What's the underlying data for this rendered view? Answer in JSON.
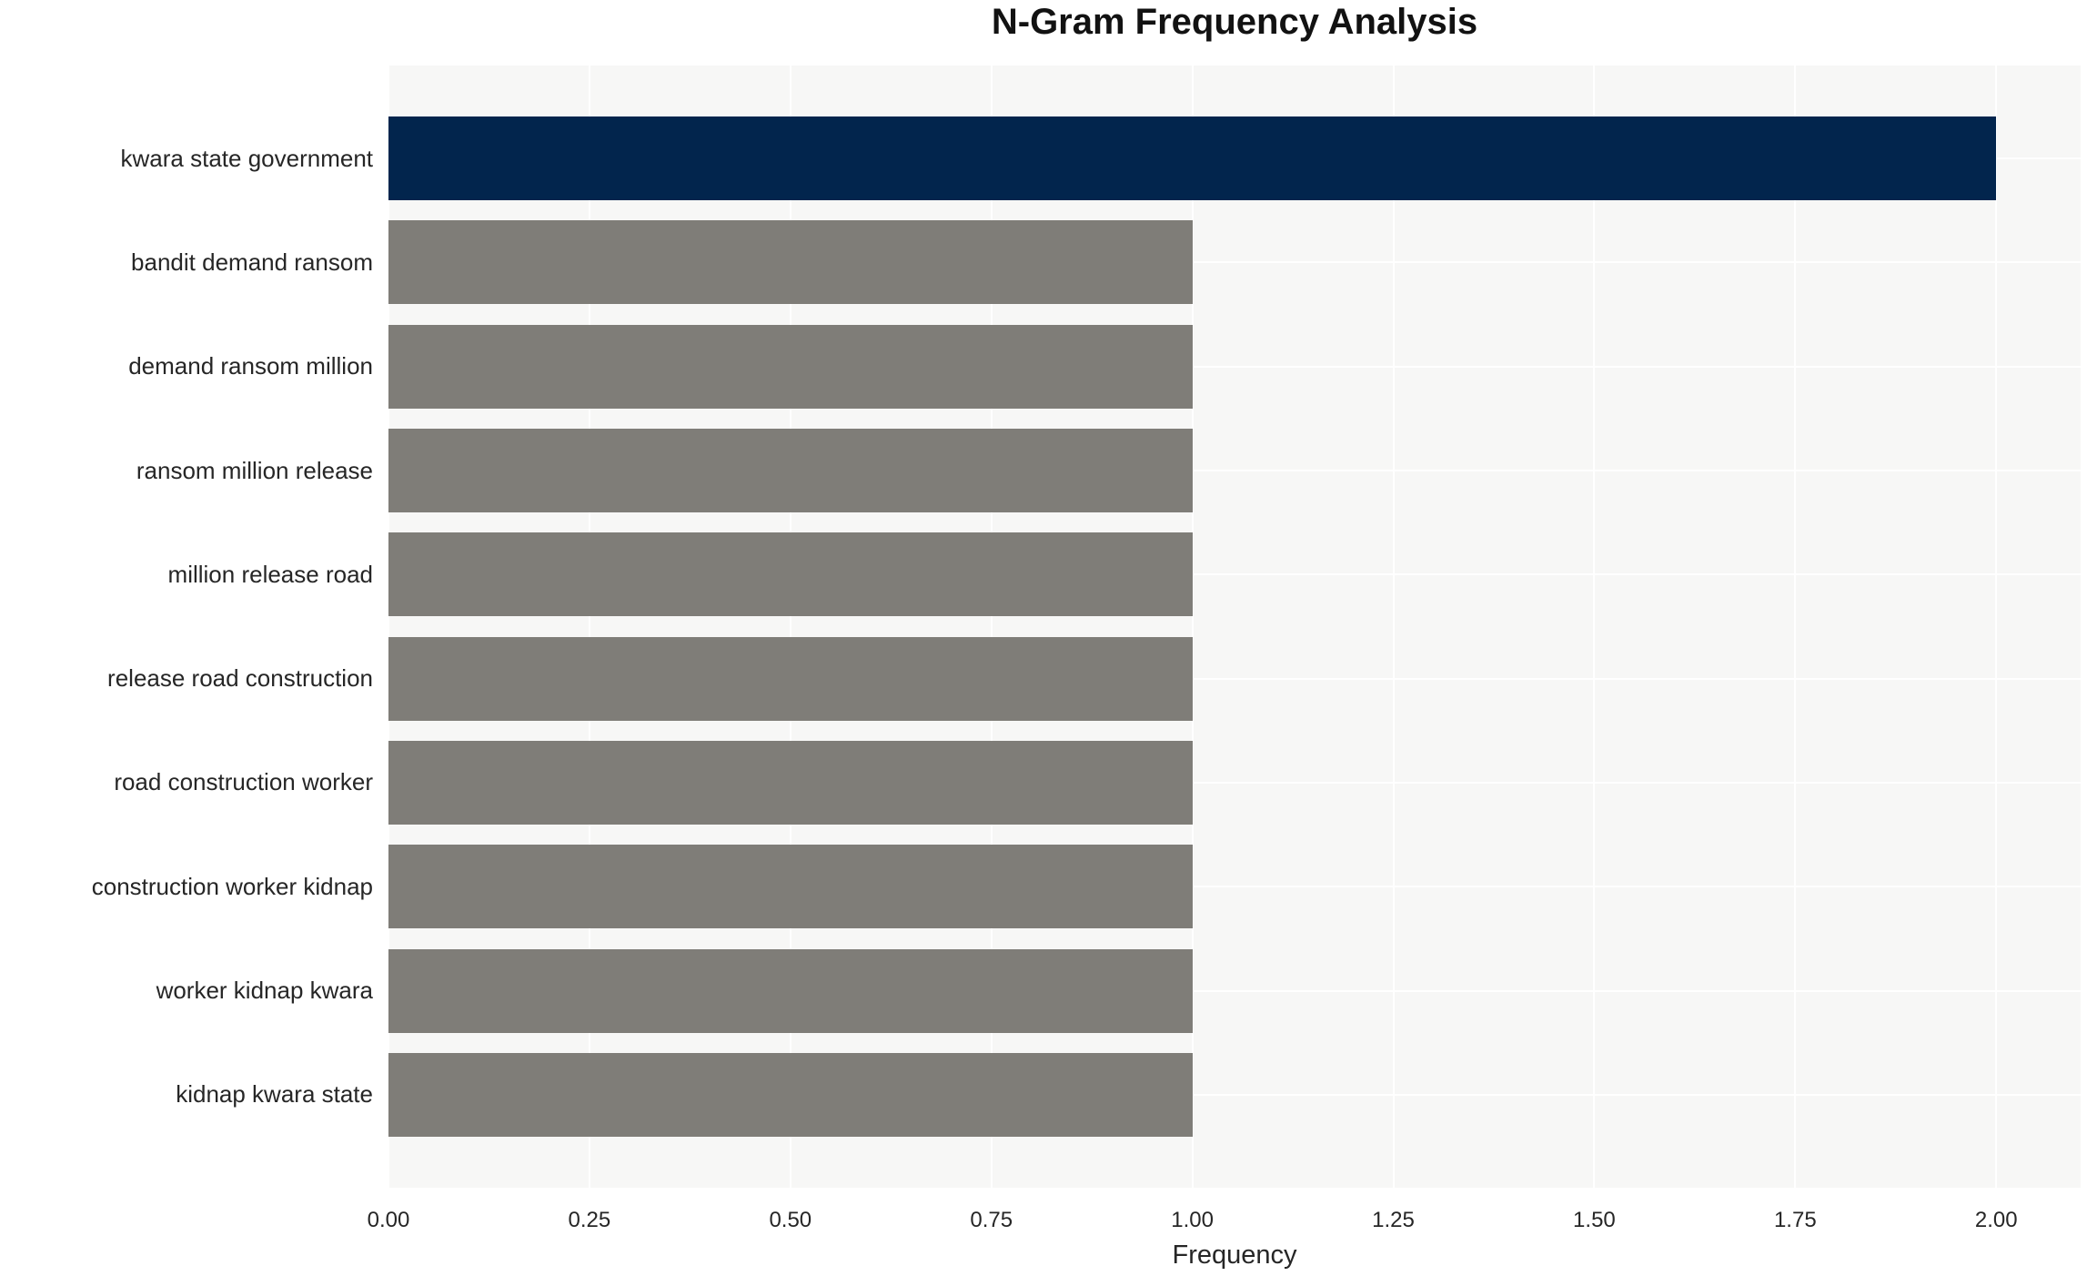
{
  "chart_data": {
    "type": "bar",
    "orientation": "horizontal",
    "title": "N-Gram Frequency Analysis",
    "xlabel": "Frequency",
    "ylabel": "",
    "categories": [
      "kwara state government",
      "bandit demand ransom",
      "demand ransom million",
      "ransom million release",
      "million release road",
      "release road construction",
      "road construction worker",
      "construction worker kidnap",
      "worker kidnap kwara",
      "kidnap kwara state"
    ],
    "values": [
      2,
      1,
      1,
      1,
      1,
      1,
      1,
      1,
      1,
      1
    ],
    "bar_colors": [
      "#02254d",
      "#7f7d78",
      "#7f7d78",
      "#7f7d78",
      "#7f7d78",
      "#7f7d78",
      "#7f7d78",
      "#7f7d78",
      "#7f7d78",
      "#7f7d78"
    ],
    "xlim": [
      0,
      2.105
    ],
    "xticks": [
      0,
      0.25,
      0.5,
      0.75,
      1.0,
      1.25,
      1.5,
      1.75,
      2.0
    ],
    "xtick_labels": [
      "0.00",
      "0.25",
      "0.50",
      "0.75",
      "1.00",
      "1.25",
      "1.50",
      "1.75",
      "2.00"
    ],
    "grid": true,
    "legend": false,
    "colors": {
      "figure_bg": "#ffffff",
      "plot_bg": "#f7f7f6",
      "grid": "#ffffff",
      "bar_primary": "#02254d",
      "bar_secondary": "#7f7d78",
      "text": "#262626"
    }
  }
}
